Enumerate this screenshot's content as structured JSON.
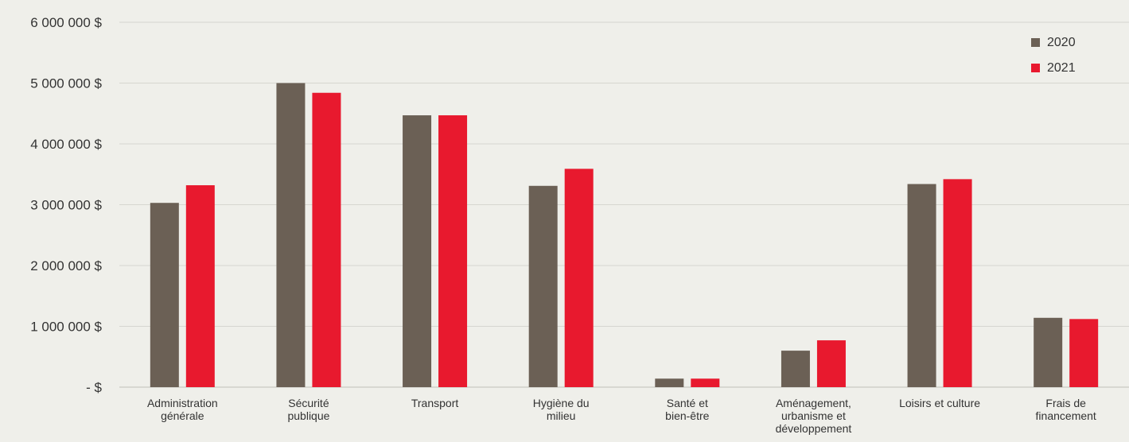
{
  "chart_data": {
    "type": "bar",
    "title": "",
    "xlabel": "",
    "ylabel": "",
    "ylim": [
      0,
      6000000
    ],
    "y_ticks": [
      {
        "value": 0,
        "label": "- $"
      },
      {
        "value": 1000000,
        "label": "1 000 000 $"
      },
      {
        "value": 2000000,
        "label": "2 000 000 $"
      },
      {
        "value": 3000000,
        "label": "3 000 000 $"
      },
      {
        "value": 4000000,
        "label": "4 000 000 $"
      },
      {
        "value": 5000000,
        "label": "5 000 000 $"
      },
      {
        "value": 6000000,
        "label": "6 000 000 $"
      }
    ],
    "grid": true,
    "legend_position": "top-right",
    "categories": [
      [
        "Administration",
        "générale"
      ],
      [
        "Sécurité",
        "publique"
      ],
      [
        "Transport"
      ],
      [
        "Hygiène du",
        "milieu"
      ],
      [
        "Santé et",
        "bien-être"
      ],
      [
        "Aménagement,",
        "urbanisme et",
        "développement"
      ],
      [
        "Loisirs et culture"
      ],
      [
        "Frais de",
        "financement"
      ]
    ],
    "series": [
      {
        "name": "2020",
        "color": "#6b6055",
        "values": [
          3030000,
          5000000,
          4470000,
          3310000,
          140000,
          600000,
          3340000,
          1140000
        ]
      },
      {
        "name": "2021",
        "color": "#e8192e",
        "values": [
          3320000,
          4840000,
          4470000,
          3590000,
          140000,
          770000,
          3420000,
          1120000
        ]
      }
    ]
  }
}
